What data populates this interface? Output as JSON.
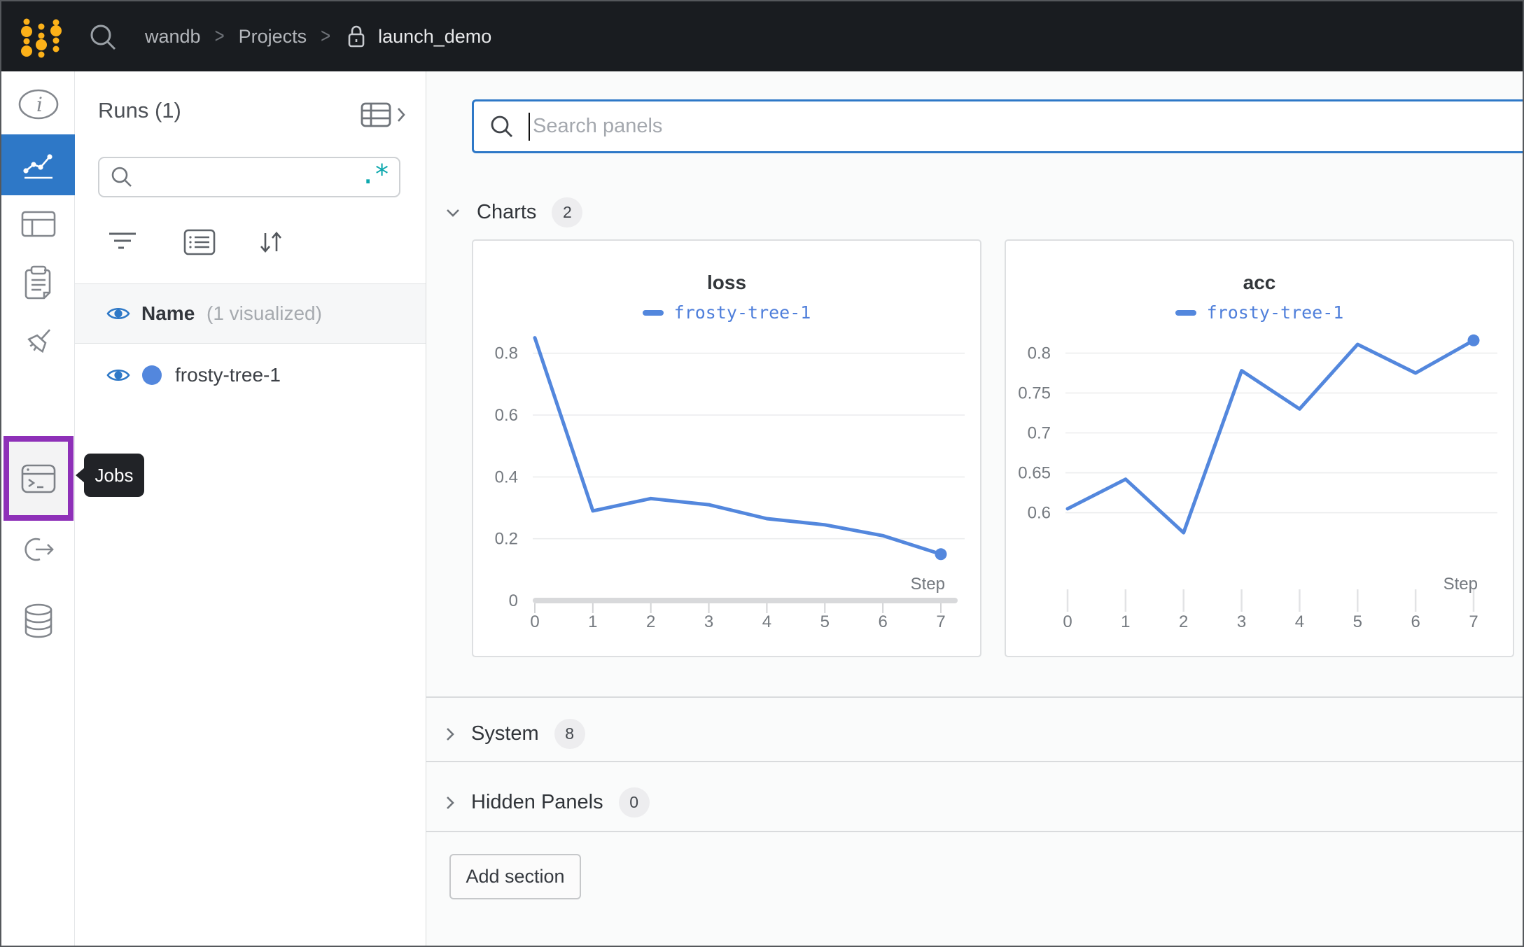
{
  "topbar": {
    "logo": "wandb-logo",
    "search_icon": "search-icon",
    "breadcrumb": {
      "separator": ">",
      "items": [
        "wandb",
        "Projects",
        "launch_demo"
      ]
    }
  },
  "sidebar": {
    "tooltip": "Jobs",
    "items": [
      {
        "id": "overview",
        "icon": "info-icon",
        "active": false
      },
      {
        "id": "workspace",
        "icon": "line-chart-icon",
        "active": true
      },
      {
        "id": "runs-table",
        "icon": "table-icon",
        "active": false
      },
      {
        "id": "reports",
        "icon": "clipboard-icon",
        "active": false
      },
      {
        "id": "sweeps",
        "icon": "broom-icon",
        "active": false
      },
      {
        "id": "jobs",
        "icon": "terminal-icon",
        "active": false,
        "highlighted": true
      },
      {
        "id": "launch",
        "icon": "link-arrow-icon",
        "active": false
      },
      {
        "id": "artifacts",
        "icon": "database-icon",
        "active": false
      }
    ]
  },
  "runs_panel": {
    "title": "Runs (1)",
    "search_placeholder": "",
    "regex_icon": ".*",
    "header": {
      "label": "Name",
      "note": "(1 visualized)"
    },
    "runs": [
      {
        "name": "frosty-tree-1",
        "color": "#5387DD",
        "visible": true
      }
    ]
  },
  "main": {
    "search": {
      "placeholder": "Search panels"
    },
    "sections": [
      {
        "label": "Charts",
        "count": "2",
        "expanded": true
      },
      {
        "label": "System",
        "count": "8",
        "expanded": false
      },
      {
        "label": "Hidden Panels",
        "count": "0",
        "expanded": false
      }
    ],
    "add_section_label": "Add section"
  },
  "colors": {
    "accent_blue": "#2E78C7",
    "run_blue": "#5387DD",
    "highlight_purple": "#8E30B8",
    "logo_yellow": "#FCB119",
    "regex_teal": "#0EA8AE"
  },
  "chart_data": [
    {
      "type": "line",
      "title": "loss",
      "xlabel": "Step",
      "x": [
        0,
        1,
        2,
        3,
        4,
        5,
        6,
        7
      ],
      "series": [
        {
          "name": "frosty-tree-1",
          "values": [
            0.85,
            0.29,
            0.33,
            0.31,
            0.265,
            0.245,
            0.21,
            0.15
          ]
        }
      ],
      "ylim": [
        0,
        0.865
      ],
      "yticks": [
        0,
        0.2,
        0.4,
        0.6,
        0.8
      ],
      "show_zero_baseline": true,
      "grid": true,
      "legend_position": "top",
      "line_color": "#5387DD",
      "marker_last_point": true
    },
    {
      "type": "line",
      "title": "acc",
      "xlabel": "Step",
      "x": [
        0,
        1,
        2,
        3,
        4,
        5,
        6,
        7
      ],
      "series": [
        {
          "name": "frosty-tree-1",
          "values": [
            0.605,
            0.642,
            0.575,
            0.778,
            0.73,
            0.811,
            0.775,
            0.816
          ]
        }
      ],
      "ylim": [
        0.49,
        0.825
      ],
      "yticks": [
        0.6,
        0.65,
        0.7,
        0.75,
        0.8
      ],
      "show_zero_baseline": false,
      "grid": true,
      "legend_position": "top",
      "line_color": "#5387DD",
      "marker_last_point": true
    }
  ]
}
